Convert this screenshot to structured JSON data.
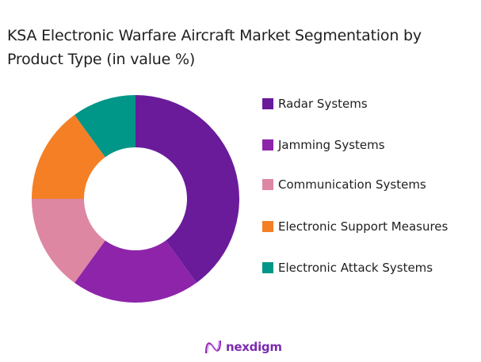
{
  "header": {
    "title_line1": "KSA Electronic Warfare Aircraft Market Segmentation by",
    "title_line2": "Product Type (in value %)"
  },
  "legend": {
    "items": [
      {
        "label": "Radar Systems",
        "color": "#6a1b9a"
      },
      {
        "label": "Jamming Systems",
        "color": "#8e24aa"
      },
      {
        "label": "Communication Systems",
        "color": "#de87a3"
      },
      {
        "label": "Electronic Support Measures",
        "color": "#f57f25"
      },
      {
        "label": "Electronic Attack Systems",
        "color": "#009688"
      }
    ]
  },
  "footer": {
    "logo_text": "nexdigm"
  },
  "chart_data": {
    "type": "pie",
    "variant": "donut",
    "title": "KSA Electronic Warfare Aircraft Market Segmentation by Product Type (in value %)",
    "categories": [
      "Radar Systems",
      "Jamming Systems",
      "Communication Systems",
      "Electronic Support Measures",
      "Electronic Attack Systems"
    ],
    "values": [
      40,
      20,
      15,
      15,
      10
    ],
    "colors": [
      "#6a1b9a",
      "#8e24aa",
      "#de87a3",
      "#f57f25",
      "#009688"
    ],
    "start_angle": "top (12 o'clock)",
    "direction": "clockwise",
    "legend_position": "right",
    "data_labels": false
  }
}
